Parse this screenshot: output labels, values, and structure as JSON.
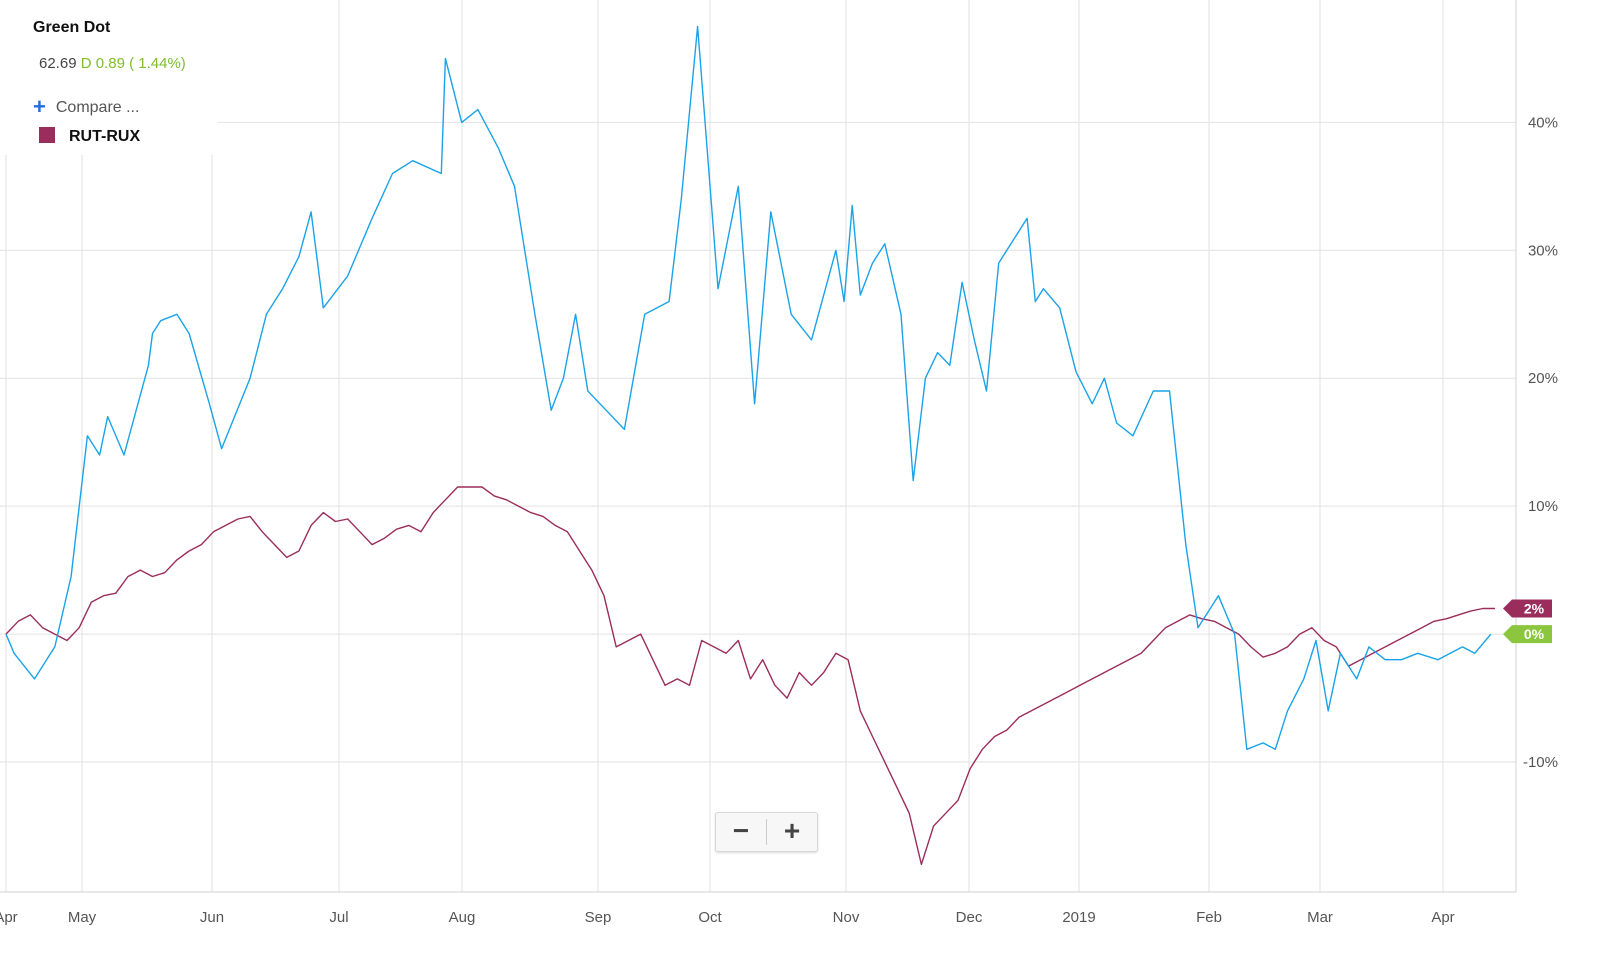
{
  "header": {
    "title": "Green Dot",
    "price": "62.69",
    "change_label": "D 0.89 ( 1.44%)",
    "compare_label": "Compare ...",
    "compare_icon": "plus-icon"
  },
  "legend": {
    "series_label": "RUT-RUX",
    "series_color": "#9b2d5c"
  },
  "zoom": {
    "out_label": "−",
    "in_label": "+"
  },
  "badges": [
    {
      "label": "2%",
      "color": "#9b2d5c"
    },
    {
      "label": "0%",
      "color": "#8cc63f"
    }
  ],
  "chart_data": {
    "type": "line",
    "x_labels": [
      "Apr",
      "May",
      "Jun",
      "Jul",
      "Aug",
      "Sep",
      "Oct",
      "Nov",
      "Dec",
      "2019",
      "Feb",
      "Mar",
      "Apr"
    ],
    "y_ticks": [
      "40%",
      "30%",
      "20%",
      "10%",
      "-10%"
    ],
    "ylim": [
      -20,
      48
    ],
    "grid": true,
    "series": [
      {
        "name": "Green Dot",
        "color": "#1aa3e8",
        "x": [
          0,
          2,
          7,
          12,
          16,
          20,
          23,
          25,
          29,
          32,
          35,
          36,
          38,
          42,
          45,
          50,
          53,
          60,
          64,
          68,
          72,
          75,
          78,
          84,
          90,
          95,
          100,
          107,
          108,
          112,
          116,
          121,
          125,
          130,
          134,
          137,
          140,
          143,
          146,
          152,
          157,
          163,
          166,
          170,
          175,
          180,
          184,
          188,
          193,
          198,
          204,
          206,
          208,
          210,
          213,
          216,
          220,
          223,
          226,
          229,
          232,
          235,
          238,
          241,
          244,
          248,
          251,
          253,
          255,
          259,
          263,
          267,
          270,
          273,
          277,
          282,
          286,
          290,
          293,
          298,
          302,
          305,
          309,
          312,
          315,
          319,
          322,
          325,
          328,
          332,
          335,
          339,
          343,
          347,
          352,
          355,
          358,
          361,
          365
        ],
        "y": [
          0,
          -1.5,
          -3.5,
          -1,
          4.5,
          15.5,
          14,
          17,
          14,
          17.5,
          21,
          23.5,
          24.5,
          25,
          23.5,
          18,
          14.5,
          20,
          25,
          27,
          29.5,
          33,
          25.5,
          28,
          32.5,
          36,
          37,
          36,
          45,
          40,
          41,
          38,
          35,
          25,
          17.5,
          20,
          25,
          19,
          18,
          16,
          25,
          26,
          34,
          47.5,
          27,
          35,
          18,
          33,
          25,
          23,
          30,
          26,
          33.5,
          26.5,
          29,
          30.5,
          25,
          12,
          20,
          22,
          21,
          27.5,
          23,
          19,
          29,
          31,
          32.5,
          26,
          27,
          25.5,
          20.5,
          18,
          20,
          16.5,
          15.5,
          19,
          19,
          7,
          0.5,
          3,
          0,
          -9,
          -8.5,
          -9,
          -6,
          -3.5,
          -0.5,
          -6,
          -1.5,
          -3.5,
          -1,
          -2,
          -2,
          -1.5,
          -2,
          -1.5,
          -1,
          -1.5,
          0
        ]
      },
      {
        "name": "RUT-RUX",
        "color": "#9b2d5c",
        "x": [
          0,
          3,
          6,
          9,
          12,
          15,
          18,
          21,
          24,
          27,
          30,
          33,
          36,
          39,
          42,
          45,
          48,
          51,
          54,
          57,
          60,
          63,
          66,
          69,
          72,
          75,
          78,
          81,
          84,
          87,
          90,
          93,
          96,
          99,
          102,
          105,
          108,
          111,
          114,
          117,
          120,
          123,
          126,
          129,
          132,
          135,
          138,
          141,
          144,
          147,
          150,
          153,
          156,
          159,
          162,
          165,
          168,
          171,
          174,
          177,
          180,
          183,
          186,
          189,
          192,
          195,
          198,
          201,
          204,
          207,
          210,
          213,
          216,
          219,
          222,
          225,
          228,
          231,
          234,
          237,
          240,
          243,
          246,
          249,
          252,
          255,
          258,
          261,
          264,
          267,
          270,
          273,
          276,
          279,
          282,
          285,
          288,
          291,
          294,
          297,
          300,
          303,
          306,
          309,
          312,
          315,
          318,
          321,
          324,
          327,
          330,
          333,
          336,
          339,
          342,
          345,
          348,
          351,
          354,
          357,
          360,
          363,
          366
        ],
        "y": [
          0,
          1,
          1.5,
          0.5,
          0,
          -0.5,
          0.5,
          2.5,
          3,
          3.2,
          4.5,
          5,
          4.5,
          4.8,
          5.8,
          6.5,
          7,
          8,
          8.5,
          9,
          9.2,
          8,
          7,
          6,
          6.5,
          8.5,
          9.5,
          8.8,
          9,
          8,
          7,
          7.5,
          8.2,
          8.5,
          8,
          9.5,
          10.5,
          11.5,
          11.5,
          11.5,
          10.8,
          10.5,
          10,
          9.5,
          9.2,
          8.5,
          8,
          6.5,
          5,
          3,
          -1,
          -0.5,
          0,
          -2,
          -4,
          -3.5,
          -4,
          -0.5,
          -1,
          -1.5,
          -0.5,
          -3.5,
          -2,
          -4,
          -5,
          -3,
          -4,
          -3,
          -1.5,
          -2,
          -6,
          -8,
          -10,
          -12,
          -14,
          -18,
          -15,
          -14,
          -13,
          -10.5,
          -9,
          -8,
          -7.5,
          -6.5,
          -6,
          -5.5,
          -5,
          -4.5,
          -4,
          -3.5,
          -3,
          -2.5,
          -2,
          -1.5,
          -0.5,
          0.5,
          1,
          1.5,
          1.2,
          1,
          0.5,
          0,
          -1,
          -1.8,
          -1.5,
          -1,
          0,
          0.5,
          -0.5,
          -1,
          -2.5,
          -2,
          -1.5,
          -1,
          -0.5,
          0,
          0.5,
          1,
          1.2,
          1.5,
          1.8,
          2,
          2
        ]
      }
    ]
  }
}
